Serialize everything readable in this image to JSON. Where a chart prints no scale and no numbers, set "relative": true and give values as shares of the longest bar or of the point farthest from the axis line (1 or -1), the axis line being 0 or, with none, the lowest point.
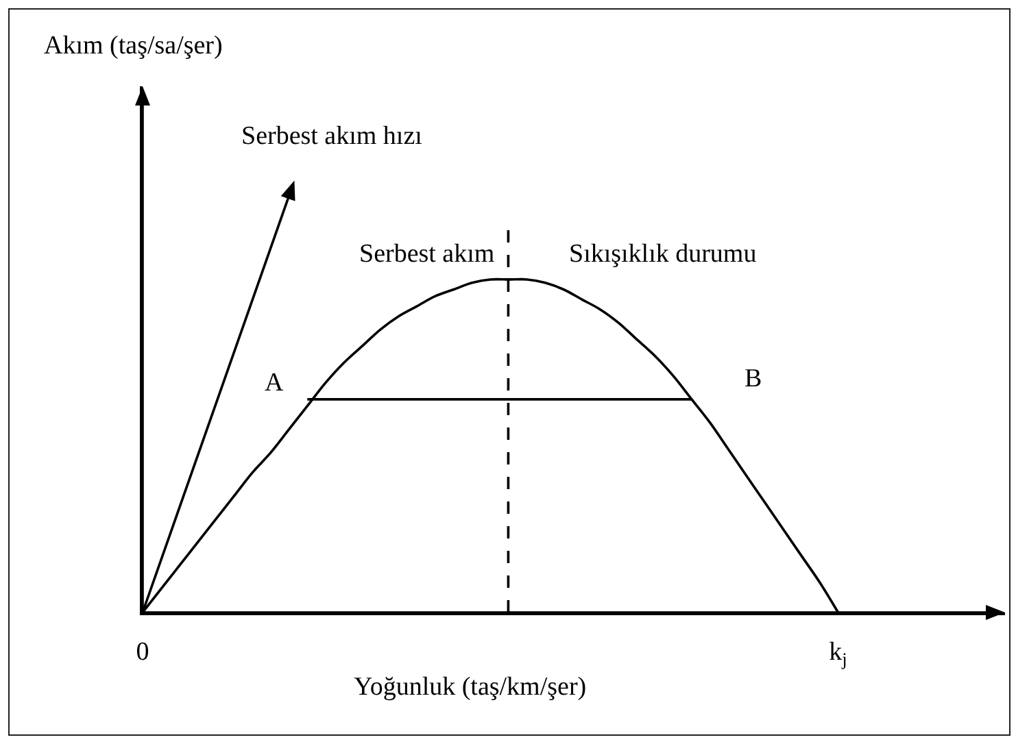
{
  "chart_data": {
    "type": "line",
    "relative": true,
    "xlabel": "Yoğunluk (taş/km/şer)",
    "categories": [
      "0",
      null,
      null,
      null,
      null,
      null,
      null,
      null,
      null,
      null,
      null,
      null,
      null,
      null,
      null,
      null,
      null,
      null,
      null,
      null,
      null,
      null,
      null,
      null,
      null,
      null,
      null,
      null,
      null,
      null,
      null,
      null,
      null,
      null,
      null,
      null,
      null,
      null,
      "k$_{j}$"
    ],
    "series": [
      {
        "color": "#000000",
        "values": [
          0,
          0.07,
          0.14,
          0.21,
          0.28,
          0.35,
          0.42,
          0.48,
          0.55,
          0.62,
          0.69,
          0.75,
          0.8,
          0.85,
          0.89,
          0.92,
          0.95,
          0.97,
          0.99,
          1,
          1,
          1,
          0.99,
          0.97,
          0.94,
          0.91,
          0.87,
          0.82,
          0.77,
          0.71,
          0.64,
          0.57,
          0.49,
          0.41,
          0.33,
          0.25,
          0.17,
          0.09,
          0
        ]
      },
      {
        "color": "#000000",
        "values": [
          null,
          null,
          null,
          null,
          null,
          null,
          null,
          null,
          null,
          0.64,
          0.64,
          0.64,
          0.64,
          0.64,
          0.64,
          0.64,
          0.64,
          0.64,
          0.64,
          0.64,
          0.64,
          0.64,
          0.64,
          0.64,
          0.64,
          0.64,
          0.64,
          0.64,
          0.64,
          0.64,
          0.64,
          null,
          null,
          null,
          null,
          null,
          null,
          null,
          null
        ]
      }
    ],
    "annotations": [
      "Akım (taş/sa/şer)",
      "Serbest akım hızı",
      "Serbest akım",
      "Sıkışıklık durumu",
      "A",
      "B"
    ]
  }
}
